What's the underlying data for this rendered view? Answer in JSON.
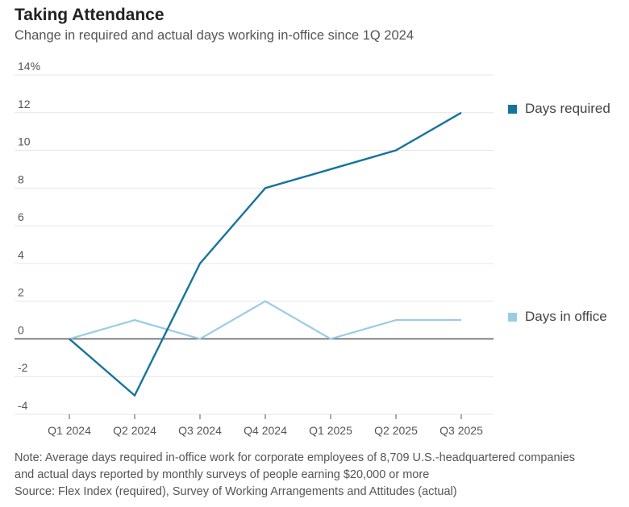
{
  "header": {
    "title": "Taking Attendance",
    "subtitle": "Change in required and actual days working in-office since 1Q 2024"
  },
  "chart_data": {
    "type": "line",
    "title": "Taking Attendance",
    "subtitle": "Change in required and actual days working in-office since 1Q 2024",
    "xlabel": "",
    "ylabel": "",
    "categories": [
      "Q1 2024",
      "Q2 2024",
      "Q3 2024",
      "Q4 2024",
      "Q1 2025",
      "Q2 2025",
      "Q3 2025"
    ],
    "y_ticks": [
      {
        "value": 14,
        "label": "14%"
      },
      {
        "value": 12,
        "label": "12"
      },
      {
        "value": 10,
        "label": "10"
      },
      {
        "value": 8,
        "label": "8"
      },
      {
        "value": 6,
        "label": "6"
      },
      {
        "value": 4,
        "label": "4"
      },
      {
        "value": 2,
        "label": "2"
      },
      {
        "value": 0,
        "label": "0"
      },
      {
        "value": -2,
        "label": "-2"
      },
      {
        "value": -4,
        "label": "-4"
      }
    ],
    "ylim": [
      -4,
      14
    ],
    "grid": true,
    "series": [
      {
        "name": "Days required",
        "color": "#14749c",
        "values": [
          0,
          -3,
          4,
          8,
          9,
          10,
          12
        ],
        "legend_position": "right-top"
      },
      {
        "name": "Days in office",
        "color": "#9acde3",
        "values": [
          0,
          1,
          0,
          2,
          0,
          1,
          1
        ],
        "legend_position": "right-bottom"
      }
    ]
  },
  "footer": {
    "note_line1": "Note: Average days required in-office work for corporate employees of 8,709 U.S.-headquartered companies",
    "note_line2": "and actual days reported by monthly surveys of people earning $20,000 or more",
    "source": "Source: Flex Index (required), Survey of Working Arrangements and Attitudes (actual)"
  }
}
